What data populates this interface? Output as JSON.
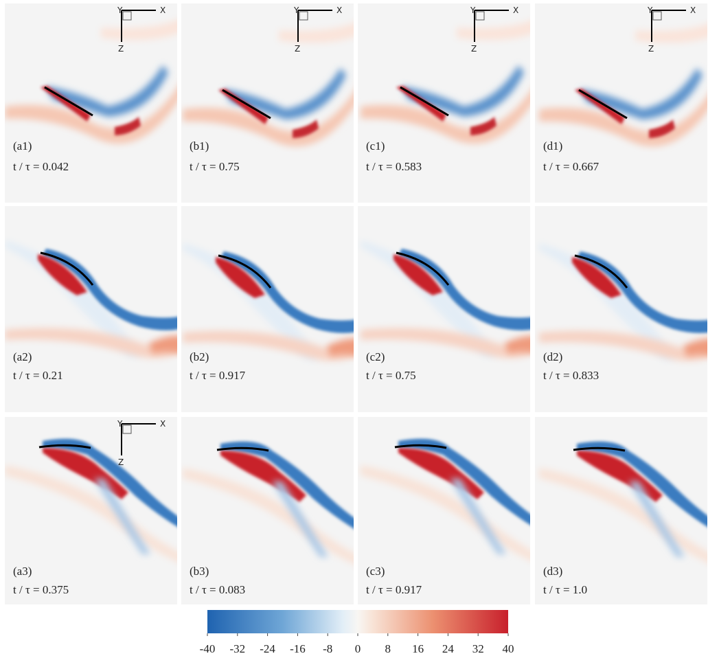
{
  "panels": [
    {
      "label": "(a1)",
      "time": "t / τ = 0.042"
    },
    {
      "label": "(b1)",
      "time": "t / τ = 0.75"
    },
    {
      "label": "(c1)",
      "time": "t / τ = 0.583"
    },
    {
      "label": "(d1)",
      "time": "t / τ = 0.667"
    },
    {
      "label": "(a2)",
      "time": "t / τ = 0.21"
    },
    {
      "label": "(b2)",
      "time": "t / τ = 0.917"
    },
    {
      "label": "(c2)",
      "time": "t / τ = 0.75"
    },
    {
      "label": "(d2)",
      "time": "t / τ = 0.833"
    },
    {
      "label": "(a3)",
      "time": "t / τ = 0.375"
    },
    {
      "label": "(b3)",
      "time": "t / τ = 0.083"
    },
    {
      "label": "(c3)",
      "time": "t / τ = 0.917"
    },
    {
      "label": "(d3)",
      "time": "t / τ = 1.0"
    }
  ],
  "triad": {
    "x": "X",
    "y": "Y",
    "z": "Z"
  },
  "colorbar": {
    "lim": [
      -40,
      40
    ],
    "ticks": [
      -40,
      -32,
      -24,
      -16,
      -8,
      0,
      8,
      16,
      24,
      32,
      40
    ]
  }
}
